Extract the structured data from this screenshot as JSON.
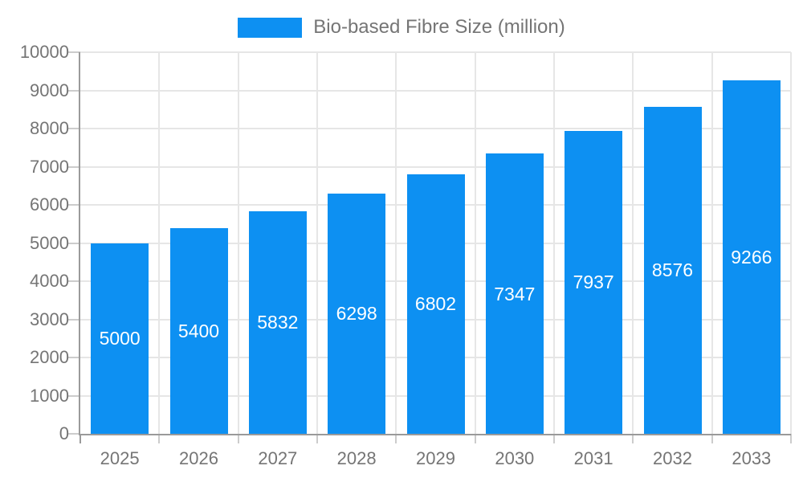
{
  "chart_data": {
    "type": "bar",
    "title": "Bio-based Fibre Size (million)",
    "categories": [
      "2025",
      "2026",
      "2027",
      "2028",
      "2029",
      "2030",
      "2031",
      "2032",
      "2033"
    ],
    "values": [
      5000,
      5400,
      5832,
      6298,
      6802,
      7347,
      7937,
      8576,
      9266
    ],
    "series": [
      {
        "name": "Bio-based Fibre Size (million)",
        "values": [
          5000,
          5400,
          5832,
          6298,
          6802,
          7347,
          7937,
          8576,
          9266
        ]
      }
    ],
    "xlabel": "",
    "ylabel": "",
    "ylim": [
      0,
      10000
    ],
    "ytick_step": 1000,
    "yticks": [
      0,
      1000,
      2000,
      3000,
      4000,
      5000,
      6000,
      7000,
      8000,
      9000,
      10000
    ],
    "grid": true,
    "legend_position": "top-center",
    "bar_label_position": "inside-center",
    "colors": {
      "bar": "#0D90F2",
      "bar_label_text": "#ffffff",
      "axis_line": "#9a9a9a",
      "grid_line": "#e6e6e6",
      "tick_mark": "#cccccc",
      "tick_text": "#757575",
      "legend_text": "#757575",
      "background": "#ffffff"
    }
  }
}
